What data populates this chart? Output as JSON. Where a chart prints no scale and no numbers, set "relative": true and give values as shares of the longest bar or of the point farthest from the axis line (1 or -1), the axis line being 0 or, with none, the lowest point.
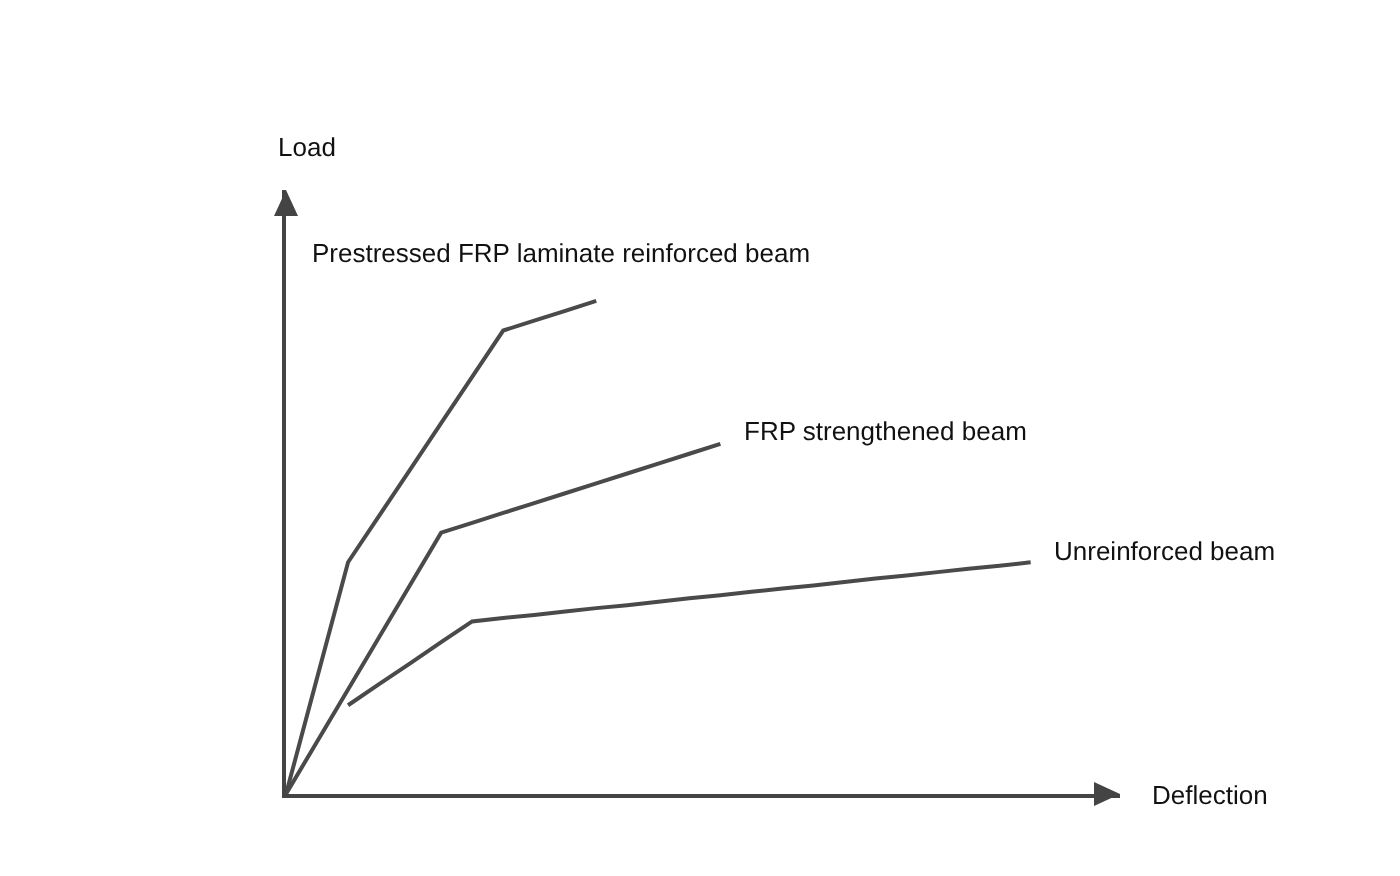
{
  "chart_data": {
    "type": "line",
    "relative": true,
    "xlabel": "Deflection",
    "annotations": [
      "Load"
    ],
    "marker": "none",
    "line_style": "solid",
    "categories": [
      null,
      null,
      null,
      null,
      null,
      null,
      null,
      null,
      null,
      null,
      null,
      null,
      null,
      null,
      null,
      null,
      null,
      null,
      null,
      null,
      null,
      null,
      null,
      null,
      null
    ],
    "series": [
      {
        "name": "Prestressed FRP laminate reinforced beam",
        "color": "#4a4a4a",
        "values": [
          0,
          0.235,
          0.47,
          0.564,
          0.658,
          0.752,
          0.846,
          0.94,
          0.96,
          0.98,
          1,
          null,
          null,
          null,
          null,
          null,
          null,
          null,
          null,
          null,
          null,
          null,
          null,
          null,
          null
        ]
      },
      {
        "name": "FRP strengthened beam",
        "color": "#4a4a4a",
        "values": [
          0,
          0.106,
          0.212,
          0.318,
          0.424,
          0.53,
          0.55,
          0.57,
          0.59,
          0.61,
          0.63,
          0.65,
          0.67,
          0.69,
          0.71,
          null,
          null,
          null,
          null,
          null,
          null,
          null,
          null,
          null,
          null
        ]
      },
      {
        "name": "Unreinforced beam",
        "color": "#4a4a4a",
        "values": [
          null,
          null,
          0.18,
          0.223,
          0.265,
          0.308,
          0.35,
          0.357,
          0.363,
          0.37,
          0.377,
          0.383,
          0.39,
          0.397,
          0.403,
          0.41,
          0.417,
          0.423,
          0.43,
          0.437,
          0.443,
          0.45,
          0.457,
          0.463,
          0.47
        ]
      }
    ]
  }
}
